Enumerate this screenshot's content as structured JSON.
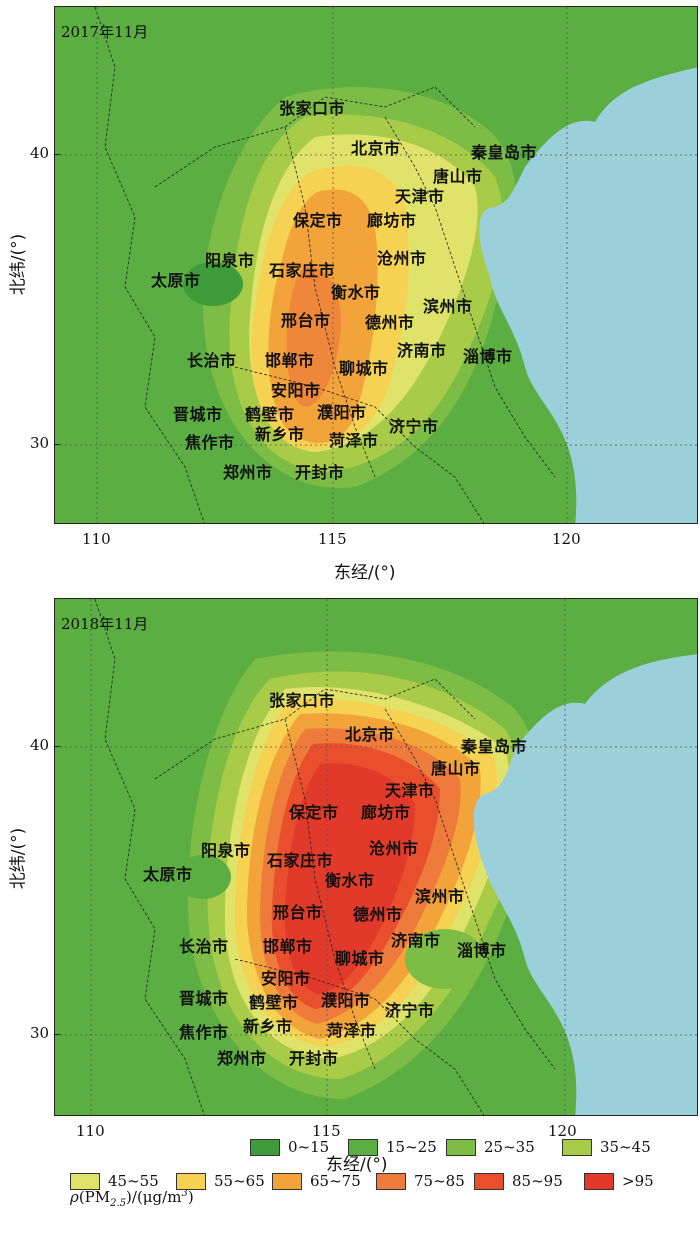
{
  "colors": {
    "c0_15": "#3f9c3a",
    "c15_25": "#5aae42",
    "c25_35": "#7dbd45",
    "c35_45": "#a9cc48",
    "c45_55": "#e0e36a",
    "c55_65": "#f5d252",
    "c65_75": "#f2a33a",
    "c75_85": "#ee7a3b",
    "c85_95": "#e94e2d",
    "c95": "#e13a2a",
    "sea": "#9bd0db"
  },
  "panels": [
    {
      "title": "2017年11月",
      "cities": [
        "张家口市",
        "北京市",
        "秦皇岛市",
        "唐山市",
        "天津市",
        "保定市",
        "廊坊市",
        "阳泉市",
        "石家庄市",
        "沧州市",
        "太原市",
        "衡水市",
        "滨州市",
        "邢台市",
        "德州市",
        "济南市",
        "淄博市",
        "长治市",
        "邯郸市",
        "聊城市",
        "安阳市",
        "晋城市",
        "鹤壁市",
        "濮阳市",
        "济宁市",
        "焦作市",
        "新乡市",
        "菏泽市",
        "郑州市",
        "开封市"
      ]
    },
    {
      "title": "2018年11月",
      "cities": [
        "张家口市",
        "北京市",
        "秦皇岛市",
        "唐山市",
        "天津市",
        "保定市",
        "廊坊市",
        "阳泉市",
        "石家庄市",
        "沧州市",
        "太原市",
        "衡水市",
        "滨州市",
        "邢台市",
        "德州市",
        "济南市",
        "淄博市",
        "长治市",
        "邯郸市",
        "聊城市",
        "安阳市",
        "晋城市",
        "鹤壁市",
        "濮阳市",
        "济宁市",
        "焦作市",
        "新乡市",
        "菏泽市",
        "郑州市",
        "开封市"
      ]
    }
  ],
  "axes": {
    "xlabel": "东经/(°)",
    "ylabel": "北纬/(°)",
    "xticks": [
      "110",
      "115",
      "120"
    ],
    "yticks": [
      "40",
      "30"
    ]
  },
  "legend": {
    "title_var": "ρ",
    "title_rest": "(PM",
    "title_sub": "2.5",
    "title_unit": ")/(μg/m",
    "title_sup": "3",
    "title_end": ")",
    "items": [
      {
        "label": "0~15",
        "color": "#3f9c3a"
      },
      {
        "label": "15~25",
        "color": "#5aae42"
      },
      {
        "label": "25~35",
        "color": "#7dbd45"
      },
      {
        "label": "35~45",
        "color": "#a9cc48"
      },
      {
        "label": "45~55",
        "color": "#e0e36a"
      },
      {
        "label": "55~65",
        "color": "#f5d252"
      },
      {
        "label": "65~75",
        "color": "#f2a33a"
      },
      {
        "label": "75~85",
        "color": "#ee7a3b"
      },
      {
        "label": "85~95",
        "color": "#e94e2d"
      },
      {
        "label": ">95",
        "color": "#e13a2a"
      }
    ]
  }
}
